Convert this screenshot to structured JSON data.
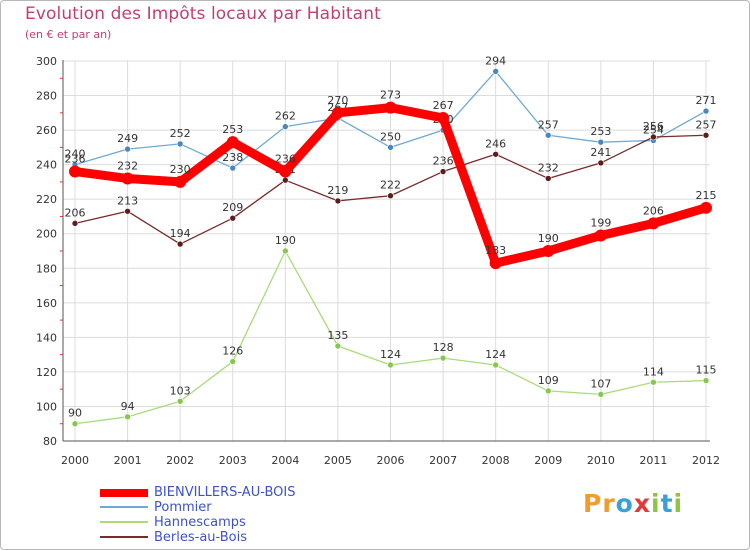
{
  "chart_data": {
    "type": "line",
    "title": "Evolution des Impôts locaux par Habitant",
    "subtitle": "(en € et par an)",
    "xlabel": "",
    "ylabel": "",
    "x": [
      "2000",
      "2001",
      "2002",
      "2003",
      "2004",
      "2005",
      "2006",
      "2007",
      "2008",
      "2009",
      "2010",
      "2011",
      "2012"
    ],
    "ylim": [
      80,
      300
    ],
    "yticks": [
      80,
      100,
      120,
      140,
      160,
      180,
      200,
      220,
      240,
      260,
      280,
      300
    ],
    "grid": true,
    "legend_position": "bottom-left",
    "series": [
      {
        "name": "Pommier",
        "color": "#6fa9d4",
        "point_color": "#4a86c0",
        "values": [
          240,
          249,
          252,
          238,
          262,
          267,
          250,
          260,
          294,
          257,
          253,
          254,
          271
        ]
      },
      {
        "name": "Hannescamps",
        "color": "#a8dc7a",
        "point_color": "#86c84e",
        "values": [
          90,
          94,
          103,
          126,
          190,
          135,
          124,
          128,
          124,
          109,
          107,
          114,
          115
        ]
      },
      {
        "name": "Berles-au-Bois",
        "color": "#7a2a2a",
        "point_color": "#5e1c1c",
        "values": [
          206,
          213,
          194,
          209,
          231,
          219,
          222,
          236,
          246,
          232,
          241,
          256,
          257
        ]
      },
      {
        "name": "BIENVILLERS-AU-BOIS",
        "color": "#ff0000",
        "point_color": "#ff0000",
        "values": [
          236,
          232,
          230,
          253,
          236,
          270,
          273,
          267,
          183,
          190,
          199,
          206,
          215
        ]
      }
    ],
    "legend": [
      "BIENVILLERS-AU-BOIS",
      "Pommier",
      "Hannescamps",
      "Berles-au-Bois"
    ]
  },
  "brand": {
    "logo_letters": [
      "P",
      "r",
      "o",
      "x",
      "i",
      "t",
      "i"
    ],
    "logo_colors": [
      "#f39c2a",
      "#f39c2a",
      "#3aa0d8",
      "#e23a3a",
      "#8cc63f",
      "#3aa0d8",
      "#8cc63f"
    ]
  }
}
